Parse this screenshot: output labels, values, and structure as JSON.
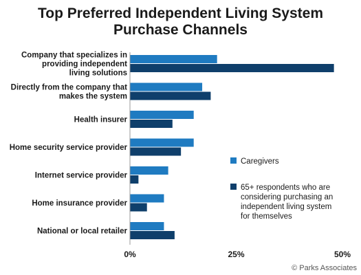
{
  "chart_data": {
    "type": "bar",
    "orientation": "horizontal",
    "title_lines": [
      "Top Preferred Independent Living System",
      "Purchase Channels"
    ],
    "categories": [
      "Company that specializes in providing independent living solutions",
      "Directly from the company that makes the system",
      "Health insurer",
      "Home security service provider",
      "Internet service provider",
      "Home insurance provider",
      "National or local retailer"
    ],
    "category_label_lines": [
      [
        "Company that specializes in",
        "providing independent",
        "living solutions"
      ],
      [
        "Directly from the company that",
        "makes the system"
      ],
      [
        "Health insurer"
      ],
      [
        "Home security service provider"
      ],
      [
        "Internet service provider"
      ],
      [
        "Home insurance provider"
      ],
      [
        "National or local retailer"
      ]
    ],
    "series": [
      {
        "name": "Caregivers",
        "color": "#1f7bc1",
        "values": [
          20.5,
          17,
          15,
          15,
          9,
          8,
          8
        ]
      },
      {
        "name": "65+ respondents who are considering purchasing an independent living system for themselves",
        "name_lines": [
          "65+ respondents who are",
          "considering purchasing an",
          "independent living system",
          "for themselves"
        ],
        "color": "#0f3f6b",
        "values": [
          48,
          19,
          10,
          12,
          2,
          4,
          10.5
        ]
      }
    ],
    "xlim": [
      0,
      50
    ],
    "x_ticks": [
      0,
      25,
      50
    ],
    "x_tick_labels": [
      "0%",
      "25%",
      "50%"
    ],
    "grid": false,
    "legend_position": "right"
  },
  "credit": "© Parks Associates"
}
